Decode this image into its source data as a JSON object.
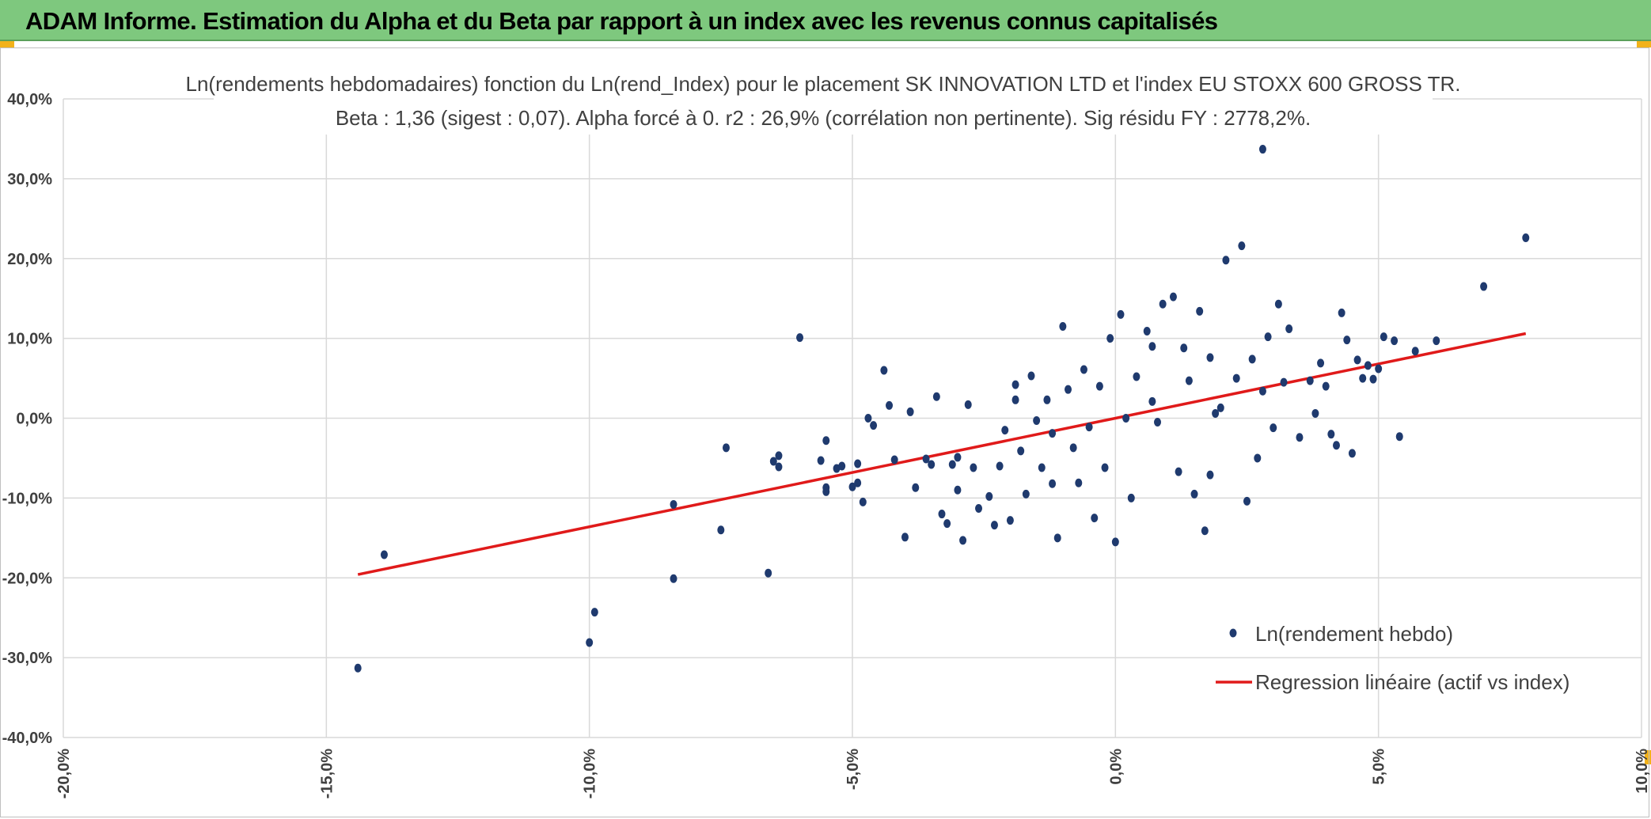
{
  "header": {
    "title": "ADAM Informe. Estimation du Alpha et du Beta par rapport à un index avec les revenus connus capitalisés"
  },
  "colors": {
    "header_bg": "#7ec87e",
    "points": "#1f3a6e",
    "regression": "#e01a1a",
    "grid": "#d9d9d9",
    "corner": "#f2b21a"
  },
  "chart_data": {
    "type": "scatter",
    "title": "Ln(rendements hebdomadaires) fonction du Ln(rend_Index) pour le placement SK INNOVATION LTD et l'index EU STOXX 600 GROSS TR.",
    "subtitle": "Beta : 1,36 (sigest : 0,07). Alpha forcé à 0. r2 : 26,9% (corrélation non pertinente). Sig résidu FY : 2778,2%.",
    "xlim": [
      -0.2,
      0.1
    ],
    "ylim": [
      -0.4,
      0.4
    ],
    "x_ticks": [
      "-20,0%",
      "-15,0%",
      "-10,0%",
      "-5,0%",
      "0,0%",
      "5,0%",
      "10,0%"
    ],
    "x_tick_values": [
      -0.2,
      -0.15,
      -0.1,
      -0.05,
      0.0,
      0.05,
      0.1
    ],
    "y_ticks": [
      "40,0%",
      "30,0%",
      "20,0%",
      "10,0%",
      "0,0%",
      "-10,0%",
      "-20,0%",
      "-30,0%",
      "-40,0%"
    ],
    "y_tick_values": [
      0.4,
      0.3,
      0.2,
      0.1,
      0.0,
      -0.1,
      -0.2,
      -0.3,
      -0.4
    ],
    "grid": true,
    "legend_position": "bottom-right",
    "series": [
      {
        "name": "Ln(rendement hebdo)",
        "kind": "scatter",
        "points": [
          [
            -0.144,
            -0.313
          ],
          [
            -0.139,
            -0.171
          ],
          [
            -0.1,
            -0.281
          ],
          [
            -0.099,
            -0.243
          ],
          [
            -0.084,
            -0.108
          ],
          [
            -0.084,
            -0.201
          ],
          [
            -0.075,
            -0.14
          ],
          [
            -0.074,
            -0.037
          ],
          [
            -0.066,
            -0.194
          ],
          [
            -0.06,
            0.101
          ],
          [
            -0.065,
            -0.054
          ],
          [
            -0.064,
            -0.047
          ],
          [
            -0.064,
            -0.061
          ],
          [
            -0.056,
            -0.053
          ],
          [
            -0.055,
            -0.092
          ],
          [
            -0.055,
            -0.087
          ],
          [
            -0.055,
            -0.028
          ],
          [
            -0.053,
            -0.063
          ],
          [
            -0.052,
            -0.06
          ],
          [
            -0.05,
            -0.086
          ],
          [
            -0.049,
            -0.081
          ],
          [
            -0.049,
            -0.057
          ],
          [
            -0.048,
            -0.105
          ],
          [
            -0.047,
            0.0
          ],
          [
            -0.046,
            -0.009
          ],
          [
            -0.044,
            0.06
          ],
          [
            -0.043,
            0.016
          ],
          [
            -0.042,
            -0.052
          ],
          [
            -0.04,
            -0.149
          ],
          [
            -0.039,
            0.008
          ],
          [
            -0.038,
            -0.087
          ],
          [
            -0.036,
            -0.051
          ],
          [
            -0.035,
            -0.058
          ],
          [
            -0.034,
            0.027
          ],
          [
            -0.033,
            -0.12
          ],
          [
            -0.032,
            -0.132
          ],
          [
            -0.031,
            -0.058
          ],
          [
            -0.03,
            -0.049
          ],
          [
            -0.03,
            -0.09
          ],
          [
            -0.028,
            0.017
          ],
          [
            -0.029,
            -0.153
          ],
          [
            -0.027,
            -0.062
          ],
          [
            -0.026,
            -0.113
          ],
          [
            -0.024,
            -0.098
          ],
          [
            -0.023,
            -0.134
          ],
          [
            -0.022,
            -0.06
          ],
          [
            -0.021,
            -0.015
          ],
          [
            -0.02,
            -0.128
          ],
          [
            -0.019,
            0.042
          ],
          [
            -0.019,
            0.023
          ],
          [
            -0.018,
            -0.041
          ],
          [
            -0.017,
            -0.095
          ],
          [
            -0.016,
            0.053
          ],
          [
            -0.015,
            -0.003
          ],
          [
            -0.014,
            -0.062
          ],
          [
            -0.013,
            0.023
          ],
          [
            -0.012,
            -0.019
          ],
          [
            -0.011,
            -0.15
          ],
          [
            -0.01,
            0.115
          ],
          [
            -0.009,
            0.036
          ],
          [
            -0.008,
            -0.037
          ],
          [
            -0.007,
            -0.081
          ],
          [
            -0.006,
            0.061
          ],
          [
            -0.005,
            -0.011
          ],
          [
            -0.004,
            -0.125
          ],
          [
            -0.003,
            0.04
          ],
          [
            -0.002,
            -0.062
          ],
          [
            -0.001,
            0.1
          ],
          [
            0.0,
            -0.155
          ],
          [
            0.001,
            0.13
          ],
          [
            0.002,
            0.0
          ],
          [
            0.003,
            -0.1
          ],
          [
            0.004,
            0.052
          ],
          [
            0.006,
            0.109
          ],
          [
            0.007,
            0.021
          ],
          [
            0.008,
            -0.005
          ],
          [
            0.009,
            0.143
          ],
          [
            0.011,
            0.152
          ],
          [
            0.012,
            -0.067
          ],
          [
            0.013,
            0.088
          ],
          [
            0.014,
            0.047
          ],
          [
            0.015,
            -0.095
          ],
          [
            0.016,
            0.134
          ],
          [
            0.017,
            -0.141
          ],
          [
            0.018,
            0.076
          ],
          [
            0.019,
            0.006
          ],
          [
            0.02,
            0.013
          ],
          [
            0.021,
            0.198
          ],
          [
            0.023,
            0.05
          ],
          [
            0.024,
            0.216
          ],
          [
            0.025,
            -0.104
          ],
          [
            0.026,
            0.074
          ],
          [
            0.027,
            -0.05
          ],
          [
            0.028,
            0.034
          ],
          [
            0.029,
            0.102
          ],
          [
            0.03,
            -0.012
          ],
          [
            0.031,
            0.143
          ],
          [
            0.032,
            0.045
          ],
          [
            0.033,
            0.112
          ],
          [
            0.035,
            -0.024
          ],
          [
            0.037,
            0.047
          ],
          [
            0.038,
            0.006
          ],
          [
            0.039,
            0.069
          ],
          [
            0.04,
            0.04
          ],
          [
            0.041,
            -0.02
          ],
          [
            0.042,
            -0.034
          ],
          [
            0.043,
            0.132
          ],
          [
            0.044,
            0.098
          ],
          [
            0.045,
            -0.044
          ],
          [
            0.046,
            0.073
          ],
          [
            0.047,
            0.05
          ],
          [
            0.048,
            0.066
          ],
          [
            0.049,
            0.049
          ],
          [
            0.05,
            0.062
          ],
          [
            0.051,
            0.102
          ],
          [
            0.053,
            0.097
          ],
          [
            0.054,
            -0.023
          ],
          [
            0.057,
            0.084
          ],
          [
            0.061,
            0.097
          ],
          [
            0.07,
            0.165
          ],
          [
            0.078,
            0.226
          ],
          [
            0.028,
            0.337
          ],
          [
            0.007,
            0.09
          ],
          [
            -0.012,
            -0.082
          ],
          [
            0.018,
            -0.071
          ]
        ]
      },
      {
        "name": "Regression linéaire (actif vs index)",
        "kind": "line",
        "beta": 1.36,
        "x_range": [
          -0.144,
          0.078
        ]
      }
    ]
  }
}
